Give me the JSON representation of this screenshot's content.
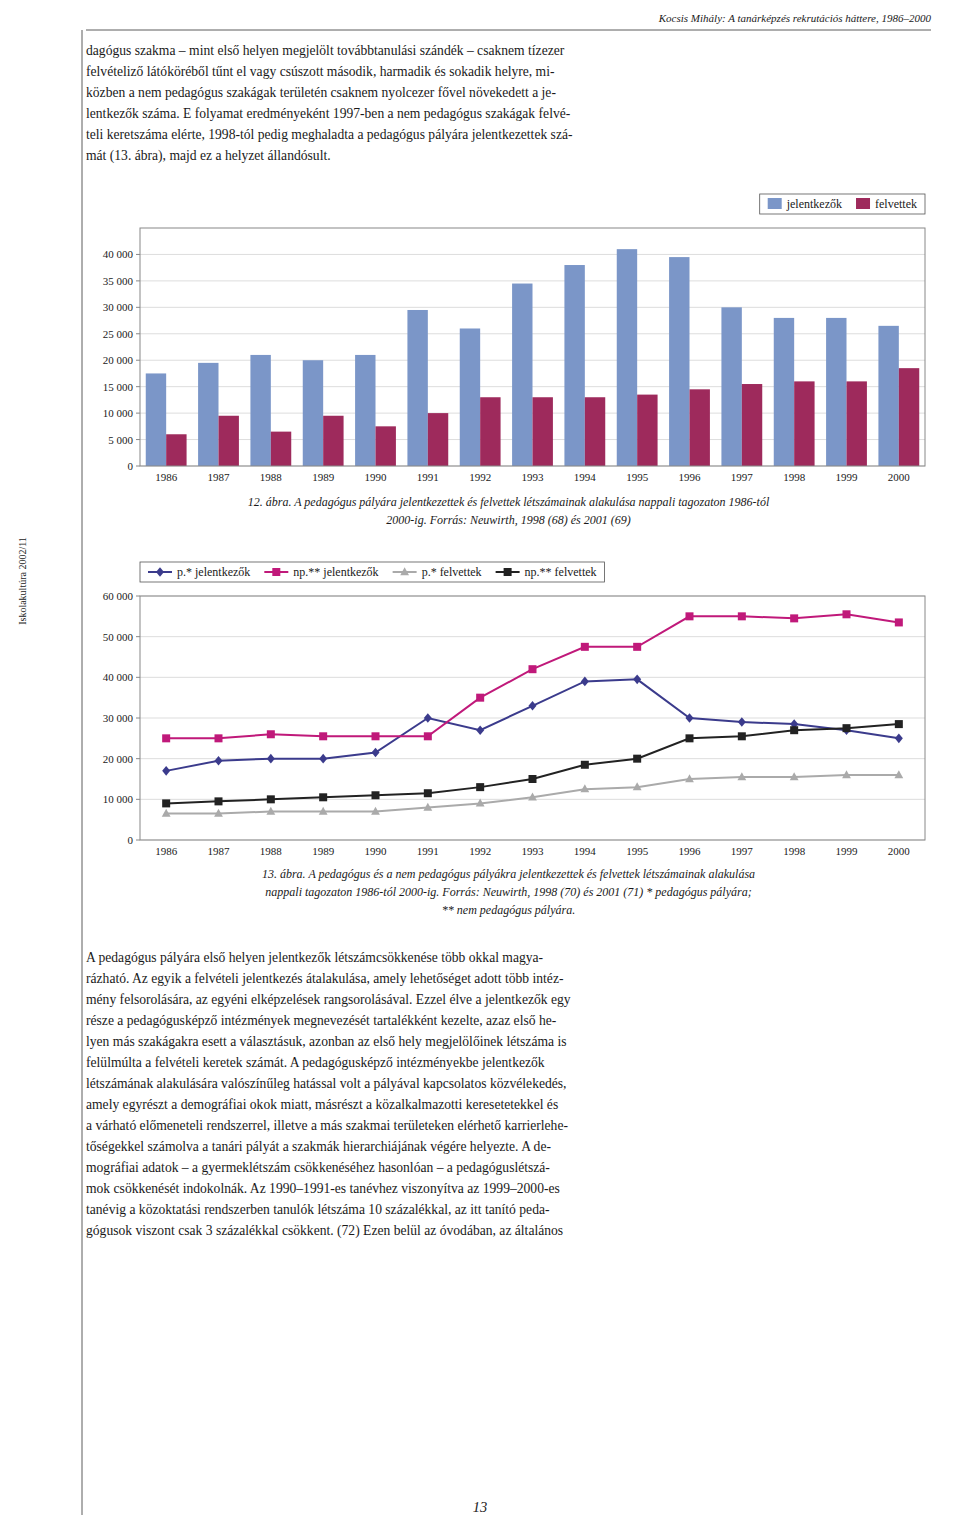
{
  "page": {
    "header": "Kocsis Mihály: A tanárképzés rekrutációs háttere, 1986–2000",
    "sidebar_text": "Iskolakultúra 2002/11",
    "body_text_1_lines": [
      "dagógus szakma – mint első helyen megjelölt továbbtanulási szándék – csaknem tízezer",
      "felvételiző látóköréből tűnt el vagy csúszott második, harmadik és sokadik helyre, mi-",
      "közben a nem pedagógus szakágak területén csaknem nyolcezer fővel növekedett a je-",
      "lentkezők száma. E folyamat eredményeként 1997-ben a nem pedagógus szakágak felvé-",
      "teli keretszáma elérte, 1998-tól pedig meghaladta a pedagógus pályára jelentkezettek szá-",
      "mát (13. ábra), majd ez a helyzet állandósult."
    ],
    "body_text_2_lines": [
      "A pedagógus pályára első helyen jelentkezők létszámcsökkenése több okkal magya-",
      "rázható. Az egyik a felvételi jelentkezés átalakulása, amely lehetőséget adott több intéz-",
      "mény felsorolására, az egyéni elképzelések rangsorolásával. Ezzel élve a jelentkezők egy",
      "része a pedagógusképző intézmények megnevezését tartalékként kezelte, azaz első he-",
      "lyen más szakágakra esett a választásuk, azonban az első hely megjelölőinek létszáma is",
      "felülmúlta a felvételi keretek számát. A pedagógusképző intézményekbe jelentkezők",
      "létszámának alakulására valószínűleg hatással volt a pályával kapcsolatos közvélekedés,",
      "amely egyrészt a demográfiai okok miatt, másrészt a közalkalmazotti keresetetekkel és",
      "a várható előmeneteli rendszerrel, illetve a más szakmai területeken elérhető karrierlehe-",
      "tőségekkel számolva a tanári pályát a szakmák hierarchiájának végére helyezte. A de-",
      "mográfiai adatok – a gyermeklétszám csökkenéséhez hasonlóan – a pedagóguslétszá-",
      "mok csökkenését indokolnák. Az 1990–1991-es tanévhez viszonyítva az 1999–2000-es",
      "tanévig a közoktatási rendszerben tanulók létszáma 10 százalékkal, az itt tanító peda-",
      "gógusok viszont csak 3 százalékkal csökkent. (72) Ezen belül az óvodában, az általános"
    ],
    "footer_text": "13",
    "text_color": "#1A1A1A",
    "border_color": "#333333"
  },
  "chart_data": [
    {
      "type": "bar",
      "categories": [
        "1986",
        "1987",
        "1988",
        "1989",
        "1990",
        "1991",
        "1992",
        "1993",
        "1994",
        "1995",
        "1996",
        "1997",
        "1998",
        "1999",
        "2000"
      ],
      "series": [
        {
          "name": "jelentkezők",
          "color": "#7B96C8",
          "values": [
            17500,
            19500,
            21000,
            20000,
            21000,
            29500,
            26000,
            34500,
            38000,
            41000,
            39500,
            30000,
            28000,
            28000,
            26500
          ]
        },
        {
          "name": "felvettek",
          "color": "#9E2A5C",
          "values": [
            6000,
            9500,
            6500,
            9500,
            7500,
            10000,
            13000,
            13000,
            13000,
            13500,
            14500,
            15500,
            16000,
            16000,
            18500
          ]
        }
      ],
      "ylim": [
        0,
        45000
      ],
      "yticks": [
        0,
        {
          "value": 5000,
          "label": "5 000"
        },
        {
          "value": 10000,
          "label": "10 000"
        },
        {
          "value": 15000,
          "label": "15 000"
        },
        {
          "value": 20000,
          "label": "20 000"
        },
        {
          "value": 25000,
          "label": "25 000"
        },
        {
          "value": 30000,
          "label": "30 000"
        },
        {
          "value": 35000,
          "label": "35 000"
        },
        {
          "value": 40000,
          "label": "40 000"
        }
      ],
      "grid": true,
      "legend": "upper right",
      "annotations": [
        "12. ábra. A pedagógus pályára jelentkezettek és felvettek létszámainak alakulása nappali tagozaton 1986-tól",
        "2000-ig. Forrás: Neuwirth, 1998 (68) és 2001 (69)"
      ]
    },
    {
      "type": "line",
      "x": [
        1986,
        1987,
        1988,
        1989,
        1990,
        1991,
        1992,
        1993,
        1994,
        1995,
        1996,
        1997,
        1998,
        1999,
        2000
      ],
      "series": [
        {
          "name": "p.* jelentkezők",
          "color": "#3B3B8C",
          "marker": "diamond",
          "values": [
            17000,
            19500,
            20000,
            20000,
            21500,
            30000,
            27000,
            33000,
            39000,
            39500,
            30000,
            29000,
            28500,
            27000,
            25000
          ]
        },
        {
          "name": "np.** jelentkezők",
          "color": "#C0197A",
          "marker": "square",
          "values": [
            25000,
            25000,
            26000,
            25500,
            25500,
            25500,
            35000,
            42000,
            47500,
            47500,
            55000,
            55000,
            54500,
            55500,
            53500
          ]
        },
        {
          "name": "p.* felvettek",
          "color": "#AAAAAA",
          "marker": "triangle",
          "values": [
            6500,
            6500,
            7000,
            7000,
            7000,
            8000,
            9000,
            10500,
            12500,
            13000,
            15000,
            15500,
            15500,
            16000,
            16000
          ]
        },
        {
          "name": "np.** felvettek",
          "color": "#222222",
          "marker": "square",
          "values": [
            9000,
            9500,
            10000,
            10500,
            11000,
            11500,
            13000,
            15000,
            18500,
            20000,
            25000,
            25500,
            27000,
            27500,
            28500
          ]
        }
      ],
      "xlim": [
        1985.5,
        2000.5
      ],
      "xticks": [
        1986,
        1987,
        1988,
        1989,
        1990,
        1991,
        1992,
        1993,
        1994,
        1995,
        1996,
        1997,
        1998,
        1999,
        2000
      ],
      "ylim": [
        0,
        60000
      ],
      "yticks": [
        0,
        {
          "value": 10000,
          "label": "10 000"
        },
        {
          "value": 20000,
          "label": "20 000"
        },
        {
          "value": 30000,
          "label": "30 000"
        },
        {
          "value": 40000,
          "label": "40 000"
        },
        {
          "value": 50000,
          "label": "50 000"
        },
        {
          "value": 60000,
          "label": "60 000"
        }
      ],
      "grid": true,
      "legend": "upper left",
      "annotations": [
        "13. ábra. A pedagógus és a nem pedagógus pályákra jelentkezettek és felvettek létszámainak alakulása",
        "nappali tagozaton 1986-tól 2000-ig. Forrás: Neuwirth, 1998 (70) és 2001 (71) * pedagógus pályára;",
        "** nem pedagógus pályára."
      ]
    }
  ]
}
